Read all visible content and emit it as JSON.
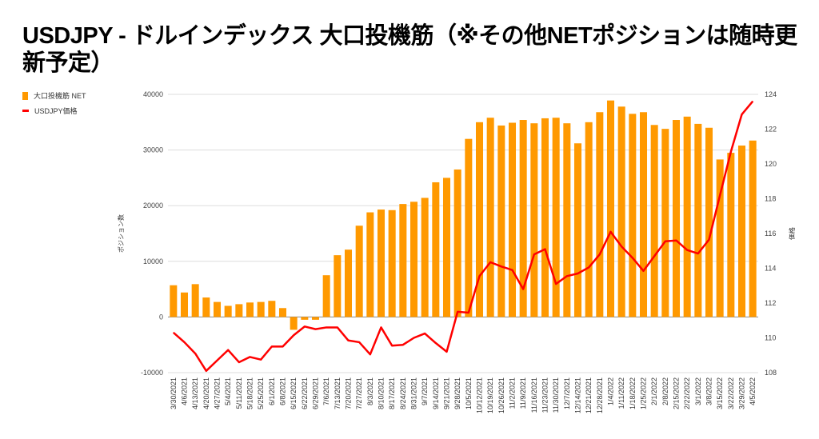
{
  "title": "USDJPY - ドルインデックス 大口投機筋（※その他NETポジションは随時更新予定）",
  "colors": {
    "bar": "#ff9900",
    "line": "#ff0000",
    "grid": "#dddddd"
  },
  "chart_data": {
    "type": "bar+line",
    "title": "USDJPY - ドルインデックス 大口投機筋（※その他NETポジションは随時更新予定）",
    "legend_position": "top-left",
    "ylabel_left": "ポジション数",
    "ylabel_right": "価格",
    "ylim_left": [
      -10000,
      40000
    ],
    "yticks_left": [
      "40000",
      "30000",
      "20000",
      "10000",
      "0",
      "-10000"
    ],
    "ylim_right": [
      108,
      124
    ],
    "yticks_right": [
      "124",
      "122",
      "120",
      "118",
      "116",
      "114",
      "112",
      "110",
      "108"
    ],
    "grid": true,
    "categories": [
      "3/30/2021",
      "4/6/2021",
      "4/13/2021",
      "4/20/2021",
      "4/27/2021",
      "5/4/2021",
      "5/11/2021",
      "5/18/2021",
      "5/25/2021",
      "6/1/2021",
      "6/8/2021",
      "6/15/2021",
      "6/22/2021",
      "6/29/2021",
      "7/6/2021",
      "7/13/2021",
      "7/20/2021",
      "7/27/2021",
      "8/3/2021",
      "8/10/2021",
      "8/17/2021",
      "8/24/2021",
      "8/31/2021",
      "9/7/2021",
      "9/14/2021",
      "9/21/2021",
      "9/28/2021",
      "10/5/2021",
      "10/12/2021",
      "10/19/2021",
      "10/26/2021",
      "11/2/2021",
      "11/9/2021",
      "11/16/2021",
      "11/23/2021",
      "11/30/2021",
      "12/7/2021",
      "12/14/2021",
      "12/21/2021",
      "12/28/2021",
      "1/4/2022",
      "1/11/2022",
      "1/18/2022",
      "1/25/2022",
      "2/1/2022",
      "2/8/2022",
      "2/15/2022",
      "2/22/2022",
      "3/1/2022",
      "3/8/2022",
      "3/15/2022",
      "3/22/2022",
      "3/29/2022",
      "4/5/2022"
    ],
    "series": [
      {
        "name": "大口投機筋  NET",
        "type": "bar",
        "axis": "left",
        "values": [
          5700,
          4400,
          5900,
          3500,
          2700,
          2000,
          2300,
          2600,
          2700,
          2900,
          1600,
          -2300,
          -500,
          -500,
          7500,
          11100,
          12100,
          16400,
          18800,
          19300,
          19200,
          20300,
          20700,
          21400,
          24200,
          25000,
          26500,
          32000,
          35000,
          35800,
          34400,
          34900,
          35400,
          34800,
          35700,
          35800,
          34800,
          31200,
          35000,
          36800,
          38900,
          37800,
          36500,
          36800,
          34500,
          33800,
          35400,
          36000,
          34700,
          34000,
          28300,
          29500,
          30800,
          31700
        ]
      },
      {
        "name": "USDJPY価格",
        "type": "line",
        "axis": "right",
        "values": [
          110.3,
          109.75,
          109.1,
          108.1,
          108.7,
          109.3,
          108.6,
          108.9,
          108.75,
          109.5,
          109.5,
          110.15,
          110.65,
          110.5,
          110.6,
          110.6,
          109.85,
          109.75,
          109.05,
          110.6,
          109.55,
          109.6,
          110.0,
          110.25,
          109.7,
          109.2,
          111.5,
          111.45,
          113.55,
          114.35,
          114.1,
          113.9,
          112.8,
          114.8,
          115.1,
          113.1,
          113.55,
          113.7,
          114.05,
          114.8,
          116.1,
          115.25,
          114.6,
          113.85,
          114.7,
          115.55,
          115.6,
          115.05,
          114.85,
          115.65,
          118.2,
          120.7,
          122.85,
          123.6
        ]
      }
    ]
  }
}
